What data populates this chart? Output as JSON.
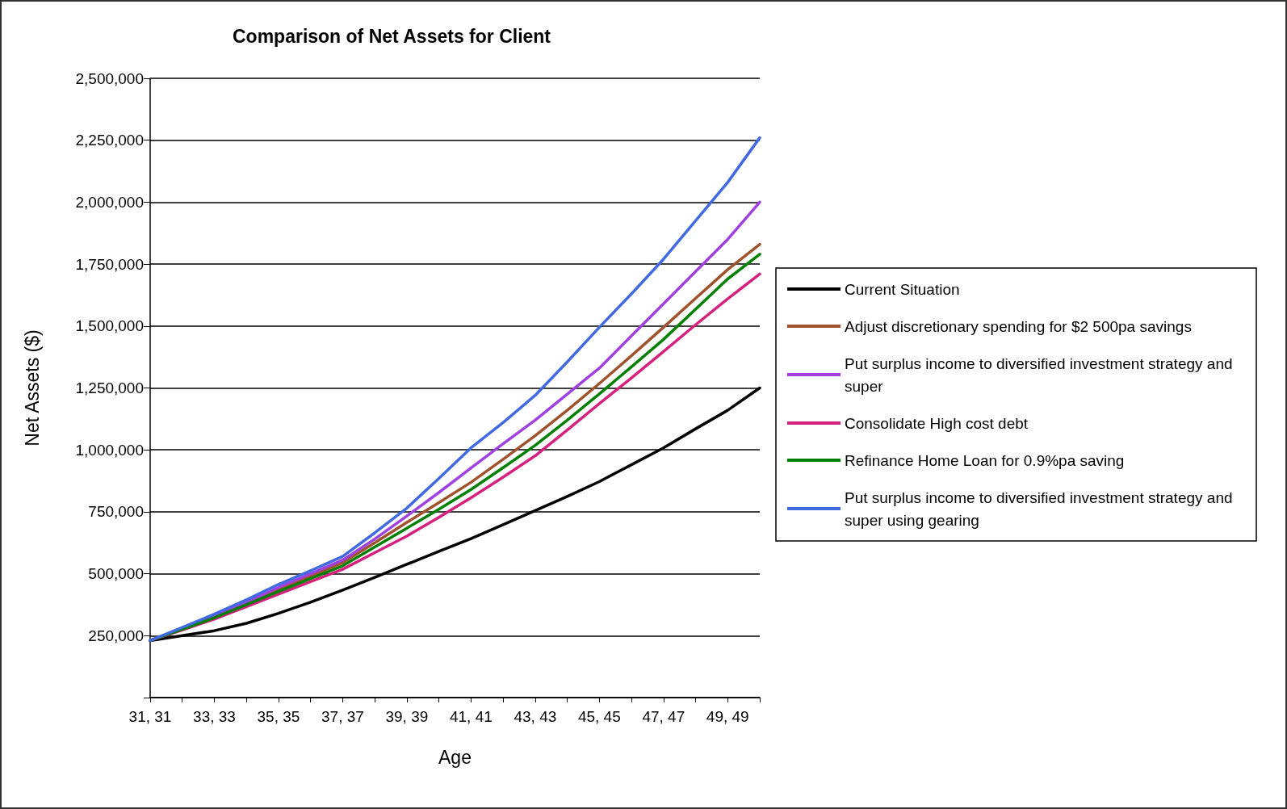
{
  "chart_data": {
    "type": "line",
    "title": "Comparison of Net Assets for Client",
    "xlabel": "Age",
    "ylabel": "Net Assets ($)",
    "categories": [
      "31, 31",
      null,
      "33, 33",
      null,
      "35, 35",
      null,
      "37, 37",
      null,
      "39, 39",
      null,
      "41, 41",
      null,
      "43, 43",
      null,
      "45, 45",
      null,
      "47, 47",
      null,
      "49, 49",
      null
    ],
    "ylim": [
      0,
      2500000
    ],
    "yticks": [
      {
        "value": 0,
        "label": null
      },
      {
        "value": 250000,
        "label": "250,000"
      },
      {
        "value": 500000,
        "label": "500,000"
      },
      {
        "value": 750000,
        "label": "750,000"
      },
      {
        "value": 1000000,
        "label": "1,000,000"
      },
      {
        "value": 1250000,
        "label": "1,250,000"
      },
      {
        "value": 1500000,
        "label": "1,500,000"
      },
      {
        "value": 1750000,
        "label": "1,750,000"
      },
      {
        "value": 2000000,
        "label": "2,000,000"
      },
      {
        "value": 2250000,
        "label": "2,250,000"
      },
      {
        "value": 2500000,
        "label": "2,500,000"
      }
    ],
    "grid": "y",
    "legend": "right",
    "marker": "none",
    "line_style": "solid",
    "series": [
      {
        "name": "Current Situation",
        "color": "#000000",
        "values": [
          230000,
          250000,
          270000,
          300000,
          340000,
          385000,
          434000,
          485000,
          538000,
          590000,
          642000,
          698000,
          755000,
          812000,
          872000,
          940000,
          1008000,
          1085000,
          1160000,
          1250000
        ]
      },
      {
        "name": "Adjust discretionary spending for $2 500pa savings",
        "color": "#a0522d",
        "values": [
          230000,
          278000,
          326000,
          380000,
          435000,
          490000,
          545000,
          625000,
          707000,
          787000,
          869000,
          962000,
          1057000,
          1160000,
          1268000,
          1380000,
          1495000,
          1612000,
          1728000,
          1830000
        ]
      },
      {
        "name": "Put surplus income to diversified investment strategy and super",
        "color": "#a040e0",
        "values": [
          230000,
          280000,
          330000,
          385000,
          445000,
          500000,
          555000,
          640000,
          733000,
          828000,
          927000,
          1025000,
          1120000,
          1225000,
          1330000,
          1460000,
          1590000,
          1720000,
          1850000,
          2000000
        ]
      },
      {
        "name": "Consolidate High cost debt",
        "color": "#d6207e",
        "values": [
          230000,
          273000,
          317000,
          367000,
          418000,
          468000,
          518000,
          585000,
          652000,
          728000,
          807000,
          890000,
          976000,
          1080000,
          1187000,
          1290000,
          1397000,
          1505000,
          1610000,
          1710000
        ]
      },
      {
        "name": "Refinance Home Loan for 0.9%pa saving",
        "color": "#008000",
        "values": [
          230000,
          276000,
          322000,
          375000,
          428000,
          480000,
          532000,
          608000,
          684000,
          760000,
          840000,
          928000,
          1018000,
          1120000,
          1226000,
          1335000,
          1446000,
          1568000,
          1690000,
          1790000
        ]
      },
      {
        "name": "Put surplus income to diversified investment strategy and super using gearing",
        "color": "#4169e1",
        "values": [
          230000,
          283000,
          337000,
          395000,
          457000,
          512000,
          570000,
          665000,
          765000,
          885000,
          1008000,
          1110000,
          1220000,
          1355000,
          1495000,
          1630000,
          1770000,
          1925000,
          2080000,
          2260000
        ]
      }
    ]
  }
}
